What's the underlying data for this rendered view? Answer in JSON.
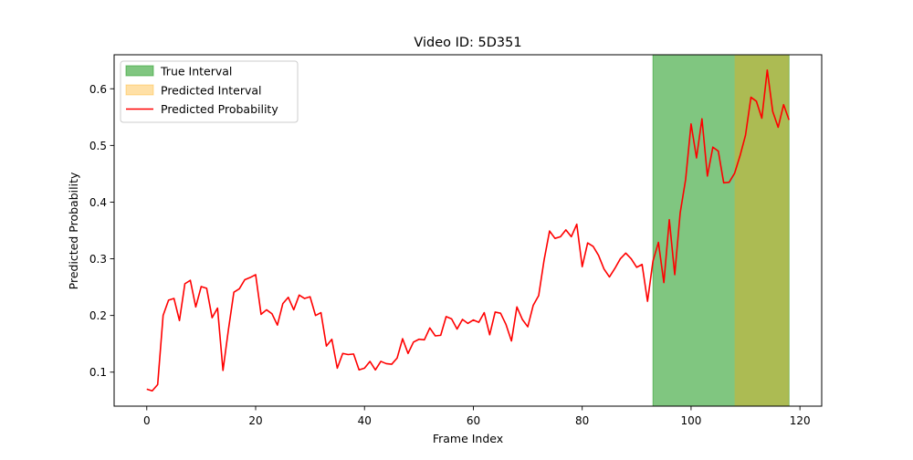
{
  "chart_data": {
    "type": "line",
    "title": "Video ID: 5D351",
    "xlabel": "Frame Index",
    "ylabel": "Predicted Probability",
    "xlim": [
      -6,
      124
    ],
    "ylim": [
      0.04,
      0.66
    ],
    "xticks": [
      0,
      20,
      40,
      60,
      80,
      100,
      120
    ],
    "yticks": [
      0.1,
      0.2,
      0.3,
      0.4,
      0.5,
      0.6
    ],
    "xtick_labels": [
      "0",
      "20",
      "40",
      "60",
      "80",
      "100",
      "120"
    ],
    "ytick_labels": [
      "0.1",
      "0.2",
      "0.3",
      "0.4",
      "0.5",
      "0.6"
    ],
    "grid": false,
    "legend_position": "top-left",
    "true_interval": {
      "label": "True Interval",
      "start": 93,
      "end": 118,
      "color": "#2ca02c",
      "opacity": 0.6
    },
    "predicted_interval": {
      "label": "Predicted Interval",
      "start": 108,
      "end": 118,
      "color": "#ffa500",
      "opacity": 0.35
    },
    "series": [
      {
        "name": "Predicted Probability",
        "color": "#ff0000",
        "x": [
          0,
          1,
          2,
          3,
          4,
          5,
          6,
          7,
          8,
          9,
          10,
          11,
          12,
          13,
          14,
          15,
          16,
          17,
          18,
          19,
          20,
          21,
          22,
          23,
          24,
          25,
          26,
          27,
          28,
          29,
          30,
          31,
          32,
          33,
          34,
          35,
          36,
          37,
          38,
          39,
          40,
          41,
          42,
          43,
          44,
          45,
          46,
          47,
          48,
          49,
          50,
          51,
          52,
          53,
          54,
          55,
          56,
          57,
          58,
          59,
          60,
          61,
          62,
          63,
          64,
          65,
          66,
          67,
          68,
          69,
          70,
          71,
          72,
          73,
          74,
          75,
          76,
          77,
          78,
          79,
          80,
          81,
          82,
          83,
          84,
          85,
          86,
          87,
          88,
          89,
          90,
          91,
          92,
          93,
          94,
          95,
          96,
          97,
          98,
          99,
          100,
          101,
          102,
          103,
          104,
          105,
          106,
          107,
          108,
          109,
          110,
          111,
          112,
          113,
          114,
          115,
          116,
          117,
          118
        ],
        "values": [
          0.07,
          0.067,
          0.078,
          0.2,
          0.227,
          0.23,
          0.191,
          0.256,
          0.262,
          0.215,
          0.251,
          0.248,
          0.196,
          0.213,
          0.103,
          0.175,
          0.241,
          0.247,
          0.263,
          0.267,
          0.272,
          0.202,
          0.21,
          0.203,
          0.183,
          0.221,
          0.232,
          0.21,
          0.236,
          0.23,
          0.233,
          0.2,
          0.205,
          0.146,
          0.158,
          0.107,
          0.133,
          0.131,
          0.132,
          0.104,
          0.107,
          0.119,
          0.104,
          0.119,
          0.115,
          0.114,
          0.125,
          0.159,
          0.133,
          0.153,
          0.158,
          0.157,
          0.178,
          0.164,
          0.165,
          0.198,
          0.194,
          0.176,
          0.193,
          0.186,
          0.192,
          0.188,
          0.205,
          0.166,
          0.206,
          0.204,
          0.184,
          0.155,
          0.215,
          0.193,
          0.18,
          0.218,
          0.235,
          0.298,
          0.349,
          0.336,
          0.339,
          0.351,
          0.339,
          0.361,
          0.286,
          0.328,
          0.322,
          0.306,
          0.282,
          0.268,
          0.283,
          0.3,
          0.31,
          0.3,
          0.285,
          0.29,
          0.225,
          0.296,
          0.329,
          0.258,
          0.369,
          0.272,
          0.381,
          0.44,
          0.538,
          0.478,
          0.547,
          0.446,
          0.497,
          0.49,
          0.434,
          0.435,
          0.451,
          0.482,
          0.518,
          0.585,
          0.578,
          0.548,
          0.633,
          0.56,
          0.532,
          0.572,
          0.545
        ]
      }
    ]
  }
}
